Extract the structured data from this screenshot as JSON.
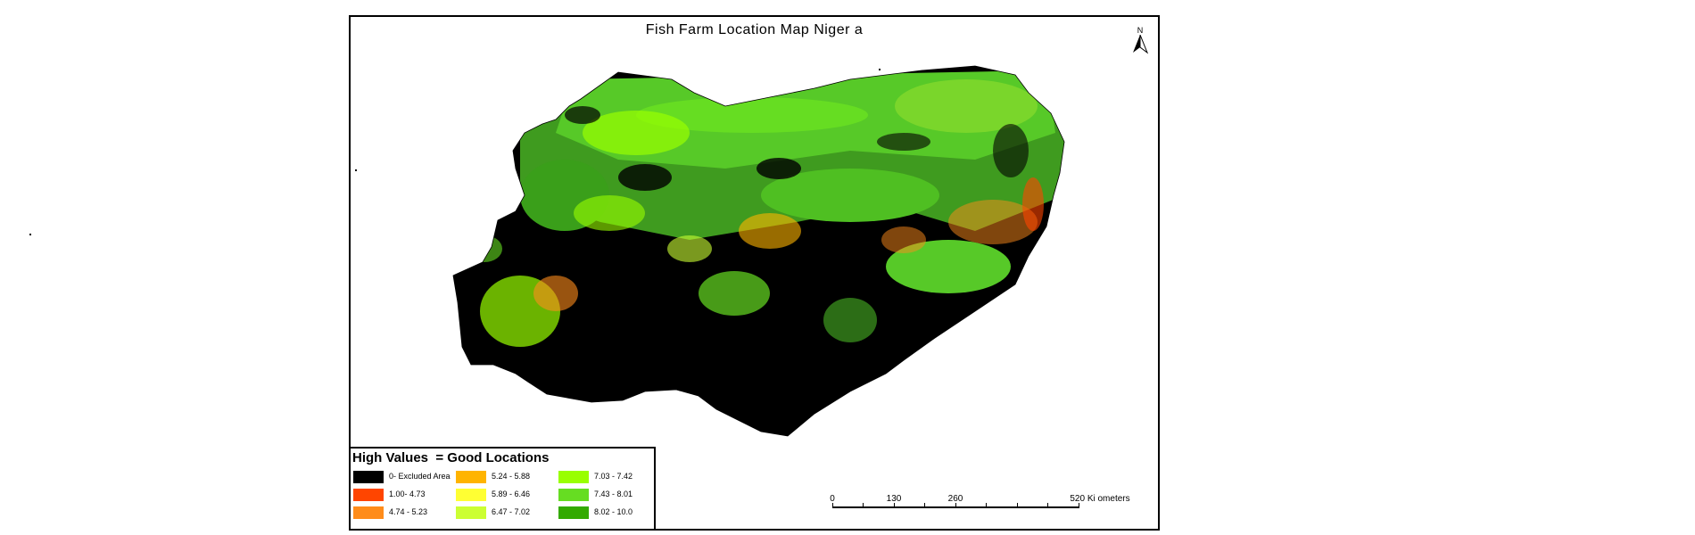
{
  "map": {
    "title": "Fish Farm Location Map Niger a",
    "north_label": "N",
    "legend": {
      "title": "High Values  = Good Locations",
      "items": [
        {
          "label": "0- Excluded Area",
          "color": "#000000"
        },
        {
          "label": "1.00- 4.73",
          "color": "#ff4500"
        },
        {
          "label": "4.74 - 5.23",
          "color": "#ff8c1a"
        },
        {
          "label": "5.24 - 5.88",
          "color": "#ffb400"
        },
        {
          "label": "5.89 - 6.46",
          "color": "#ffff33"
        },
        {
          "label": "6.47 - 7.02",
          "color": "#ccff33"
        },
        {
          "label": "7.03 - 7.42",
          "color": "#99ff00"
        },
        {
          "label": "7.43 - 8.01",
          "color": "#66dd22"
        },
        {
          "label": "8.02 - 10.0",
          "color": "#33aa00"
        }
      ]
    },
    "scale_bar": {
      "ticks": [
        "0",
        "130",
        "260",
        "520 Ki ometers"
      ]
    }
  }
}
